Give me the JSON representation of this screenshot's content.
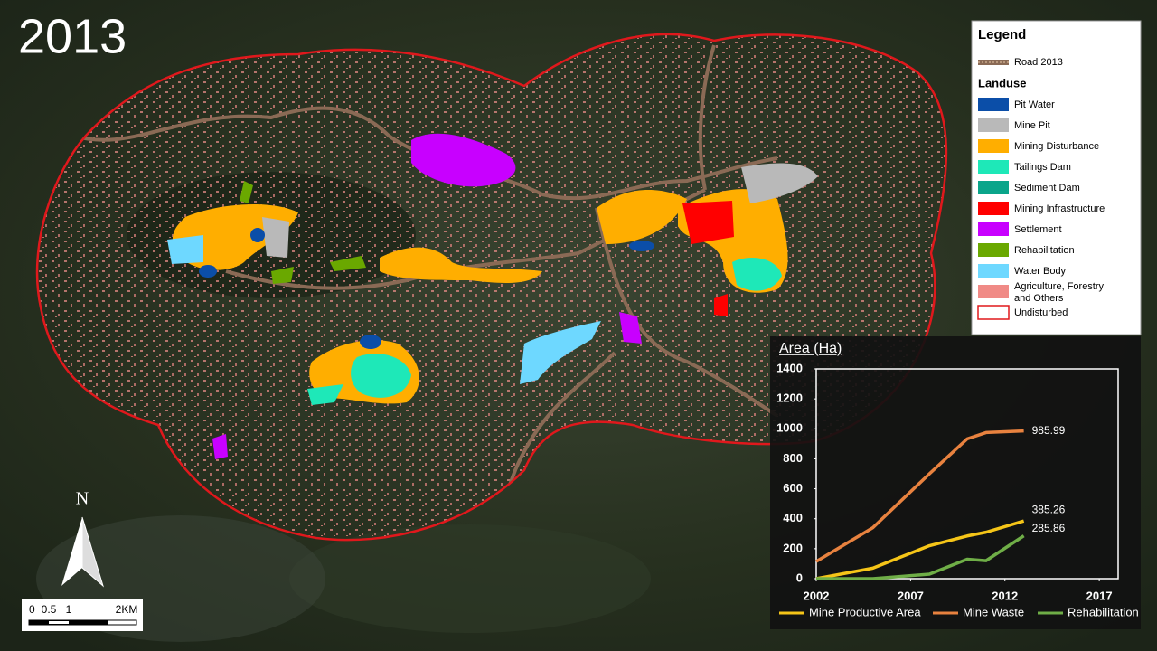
{
  "year_label": "2013",
  "north": "N",
  "scale": {
    "ticks": [
      "0",
      "0.5",
      "1",
      "2KM"
    ]
  },
  "legend": {
    "title": "Legend",
    "road": {
      "label": "Road 2013",
      "color": "#8a6a55"
    },
    "landuse_title": "Landuse",
    "items": [
      {
        "label": "Pit Water",
        "color": "#0b4ea8"
      },
      {
        "label": "Mine Pit",
        "color": "#b9b9b9"
      },
      {
        "label": "Mining Disturbance",
        "color": "#ffae00"
      },
      {
        "label": "Tailings Dam",
        "color": "#1ee8b8"
      },
      {
        "label": "Sediment Dam",
        "color": "#0aa58a"
      },
      {
        "label": "Mining Infrastructure",
        "color": "#ff0000"
      },
      {
        "label": "Settlement",
        "color": "#c800ff"
      },
      {
        "label": "Rehabilitation",
        "color": "#6aa800"
      },
      {
        "label": "Water Body",
        "color": "#6ed8ff"
      },
      {
        "label": "Agriculture, Forestry and Others",
        "color": "#f08a86"
      },
      {
        "label": "Undisturbed",
        "color": "#e0181c"
      }
    ]
  },
  "chart_data": {
    "type": "line",
    "title": "Area (Ha)",
    "xlim": [
      2002,
      2018
    ],
    "xticks": [
      2002,
      2007,
      2012,
      2017
    ],
    "ylim": [
      0,
      1400
    ],
    "yticks": [
      0,
      200,
      400,
      600,
      800,
      1000,
      1200,
      1400
    ],
    "series": [
      {
        "name": "Mine Productive Area",
        "color": "#f5c518",
        "x": [
          2002,
          2005,
          2008,
          2010,
          2011,
          2013
        ],
        "values": [
          0,
          70,
          220,
          285,
          310,
          385.26
        ]
      },
      {
        "name": "Mine Waste",
        "color": "#e8823f",
        "x": [
          2002,
          2005,
          2008,
          2010,
          2011,
          2013
        ],
        "values": [
          115,
          340,
          700,
          933,
          975,
          985.99
        ]
      },
      {
        "name": "Rehabilitation",
        "color": "#6fae47",
        "x": [
          2002,
          2005,
          2008,
          2010,
          2011,
          2013
        ],
        "values": [
          0,
          0,
          30,
          130,
          120,
          285.86
        ]
      }
    ]
  }
}
